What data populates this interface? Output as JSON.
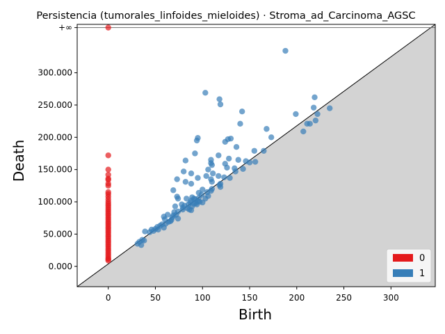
{
  "chart_data": {
    "type": "scatter",
    "title": "Persistencia (tumorales_linfoides_mieloides) · Stroma_ad_Carcinoma_AGSC",
    "xlabel": "Birth",
    "ylabel": "Death",
    "xlim": [
      -33,
      347
    ],
    "ylim": [
      -31500,
      375000
    ],
    "inf_value": 370000,
    "inf_label": "+∞",
    "x_ticks": [
      {
        "value": 0,
        "label": "0"
      },
      {
        "value": 50,
        "label": "50"
      },
      {
        "value": 100,
        "label": "100"
      },
      {
        "value": 150,
        "label": "150"
      },
      {
        "value": 200,
        "label": "200"
      },
      {
        "value": 250,
        "label": "250"
      },
      {
        "value": 300,
        "label": "300"
      }
    ],
    "y_ticks": [
      {
        "value": 0,
        "label": "0.000"
      },
      {
        "value": 50000,
        "label": "50.000"
      },
      {
        "value": 100000,
        "label": "100.000"
      },
      {
        "value": 150000,
        "label": "150.000"
      },
      {
        "value": 200000,
        "label": "200.000"
      },
      {
        "value": 250000,
        "label": "250.000"
      },
      {
        "value": 300000,
        "label": "300.000"
      }
    ],
    "legend": {
      "position": "bottom-right"
    },
    "colors": {
      "h0": "#e41a1c",
      "h1": "#377eb8",
      "diagonal_fill": "#d3d3d3",
      "inf_line": "#707070"
    },
    "series": [
      {
        "name": "0",
        "color": "#e41a1c",
        "points": [
          [
            0,
            370000
          ],
          [
            0,
            172000
          ],
          [
            0,
            150000
          ],
          [
            0,
            142000
          ],
          [
            0,
            136000
          ],
          [
            0,
            134000
          ],
          [
            0,
            128000
          ],
          [
            0,
            125000
          ],
          [
            0,
            115000
          ],
          [
            0,
            112000
          ],
          [
            0,
            108000
          ],
          [
            0,
            104000
          ],
          [
            0,
            100000
          ],
          [
            0,
            97000
          ],
          [
            0,
            94000
          ],
          [
            0,
            91000
          ],
          [
            0,
            88000
          ],
          [
            0,
            85000
          ],
          [
            0,
            82000
          ],
          [
            0,
            79000
          ],
          [
            0,
            76000
          ],
          [
            0,
            73000
          ],
          [
            0,
            70000
          ],
          [
            0,
            67000
          ],
          [
            0,
            64000
          ],
          [
            0,
            61000
          ],
          [
            0,
            58000
          ],
          [
            0,
            55000
          ],
          [
            0,
            52000
          ],
          [
            0,
            49000
          ],
          [
            0,
            46000
          ],
          [
            0,
            43000
          ],
          [
            0,
            40000
          ],
          [
            0,
            37000
          ],
          [
            0,
            34000
          ],
          [
            0,
            31000
          ],
          [
            0,
            28000
          ],
          [
            0,
            25000
          ],
          [
            0,
            22000
          ],
          [
            0,
            19000
          ],
          [
            0,
            16000
          ],
          [
            0,
            13000
          ],
          [
            0,
            11000
          ],
          [
            0,
            9000
          ]
        ]
      },
      {
        "name": "1",
        "color": "#377eb8",
        "points": [
          [
            188,
            334000
          ],
          [
            103,
            269000
          ],
          [
            219,
            262000
          ],
          [
            118,
            259000
          ],
          [
            119,
            251000
          ],
          [
            218,
            246000
          ],
          [
            235,
            245000
          ],
          [
            142,
            240000
          ],
          [
            222,
            236000
          ],
          [
            199,
            236000
          ],
          [
            220,
            226000
          ],
          [
            214,
            221000
          ],
          [
            211,
            221000
          ],
          [
            140,
            221000
          ],
          [
            168,
            213000
          ],
          [
            207,
            209000
          ],
          [
            173,
            200000
          ],
          [
            95,
            199000
          ],
          [
            130,
            198000
          ],
          [
            127,
            197000
          ],
          [
            94,
            195000
          ],
          [
            124,
            193000
          ],
          [
            136,
            185000
          ],
          [
            155,
            179000
          ],
          [
            165,
            179000
          ],
          [
            92,
            175000
          ],
          [
            117,
            172000
          ],
          [
            128,
            167000
          ],
          [
            138,
            165000
          ],
          [
            82,
            164000
          ],
          [
            109,
            165000
          ],
          [
            146,
            163000
          ],
          [
            150,
            161000
          ],
          [
            156,
            162000
          ],
          [
            109,
            160000
          ],
          [
            110,
            157000
          ],
          [
            124,
            159000
          ],
          [
            126,
            153000
          ],
          [
            134,
            152000
          ],
          [
            143,
            151000
          ],
          [
            106,
            150000
          ],
          [
            80,
            147000
          ],
          [
            135,
            147000
          ],
          [
            88,
            144000
          ],
          [
            111,
            144000
          ],
          [
            104,
            140000
          ],
          [
            117,
            140000
          ],
          [
            123,
            138000
          ],
          [
            129,
            137000
          ],
          [
            109,
            135000
          ],
          [
            95,
            137000
          ],
          [
            73,
            135000
          ],
          [
            82,
            131000
          ],
          [
            110,
            131000
          ],
          [
            88,
            128000
          ],
          [
            119,
            128000
          ],
          [
            118,
            126000
          ],
          [
            119,
            123000
          ],
          [
            69,
            118000
          ],
          [
            100,
            119000
          ],
          [
            109,
            117000
          ],
          [
            110,
            120000
          ],
          [
            105,
            115000
          ],
          [
            96,
            114000
          ],
          [
            99,
            111000
          ],
          [
            73,
            108000
          ],
          [
            89,
            107000
          ],
          [
            91,
            105000
          ],
          [
            92,
            104000
          ],
          [
            96,
            106000
          ],
          [
            103,
            105000
          ],
          [
            106,
            109000
          ],
          [
            74,
            105000
          ],
          [
            83,
            105000
          ],
          [
            88,
            102000
          ],
          [
            95,
            101000
          ],
          [
            87,
            99000
          ],
          [
            91,
            97000
          ],
          [
            93,
            98000
          ],
          [
            97,
            100000
          ],
          [
            100,
            99000
          ],
          [
            78,
            96000
          ],
          [
            81,
            94000
          ],
          [
            85,
            96000
          ],
          [
            89,
            93000
          ],
          [
            94,
            96000
          ],
          [
            71,
            93000
          ],
          [
            79,
            91000
          ],
          [
            84,
            90000
          ],
          [
            86,
            88000
          ],
          [
            79,
            88000
          ],
          [
            88,
            87000
          ],
          [
            74,
            85000
          ],
          [
            70,
            84000
          ],
          [
            72,
            80000
          ],
          [
            69,
            79000
          ],
          [
            63,
            80000
          ],
          [
            59,
            77000
          ],
          [
            60,
            73000
          ],
          [
            74,
            74000
          ],
          [
            67,
            72000
          ],
          [
            64,
            69000
          ],
          [
            61,
            66000
          ],
          [
            55,
            63000
          ],
          [
            52,
            61000
          ],
          [
            59,
            60000
          ],
          [
            50,
            58000
          ],
          [
            46,
            57000
          ],
          [
            48,
            55000
          ],
          [
            44,
            53000
          ],
          [
            39,
            54000
          ],
          [
            36,
            41000
          ],
          [
            38,
            40000
          ],
          [
            33,
            38000
          ],
          [
            31,
            35000
          ],
          [
            35,
            33000
          ],
          [
            53,
            57000
          ],
          [
            57,
            65000
          ],
          [
            66,
            70000
          ],
          [
            68,
            76000
          ]
        ]
      }
    ]
  }
}
